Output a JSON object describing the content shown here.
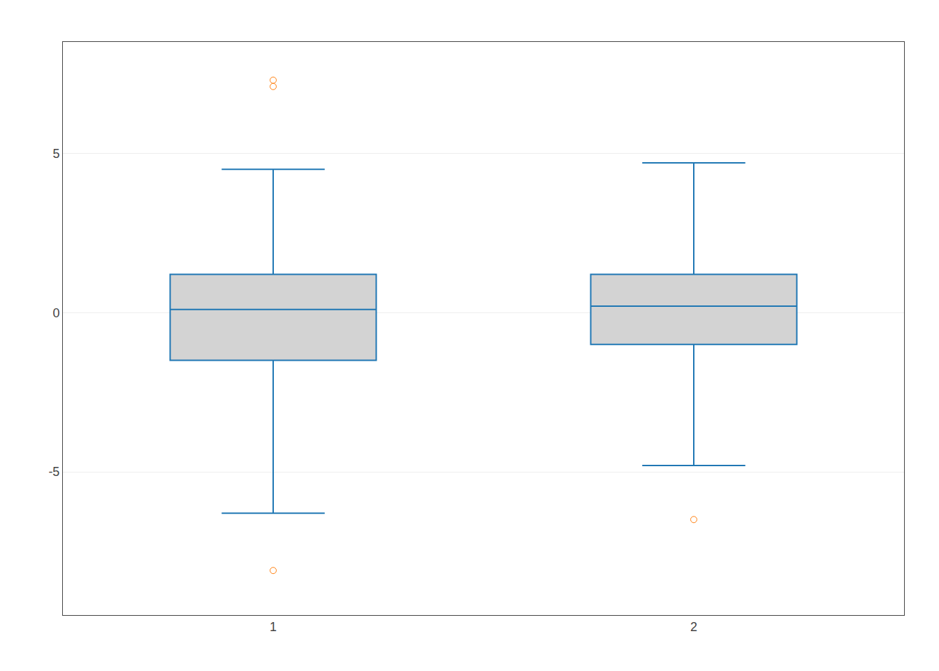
{
  "chart_data": {
    "type": "box",
    "categories": [
      "1",
      "2"
    ],
    "q1": [
      -1.5,
      -1.0
    ],
    "median": [
      0.1,
      0.2
    ],
    "q3": [
      1.2,
      1.2
    ],
    "whisker_low": [
      -6.3,
      -4.8
    ],
    "whisker_high": [
      4.5,
      4.7
    ],
    "fliers": [
      [
        7.1,
        7.3,
        -8.1
      ],
      [
        -6.5
      ]
    ],
    "color": "#d3d3d3",
    "ylim": [
      -9.5,
      8.5
    ],
    "yticks": [
      -5,
      0,
      5
    ]
  }
}
